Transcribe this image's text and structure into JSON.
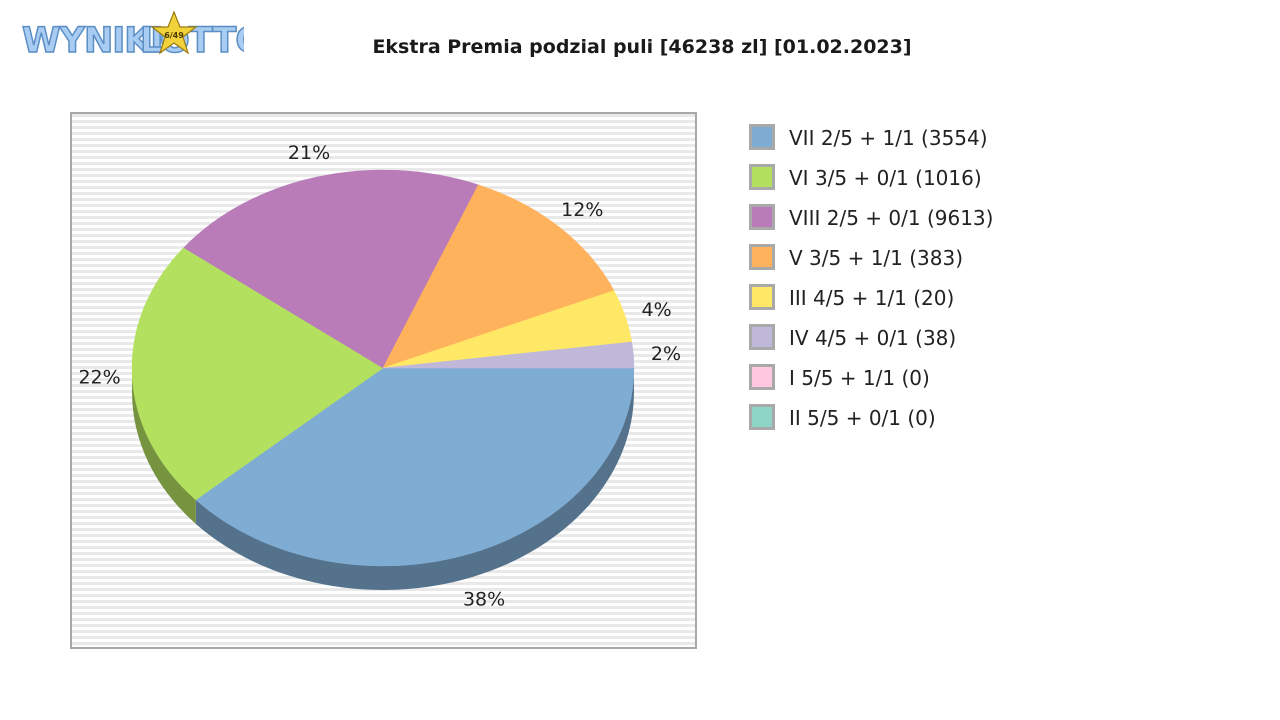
{
  "logo": {
    "text_part1": "WYNIKI",
    "text_part2": "LOTTO",
    "badge_text": "6/49"
  },
  "chart_data": {
    "type": "pie",
    "title": "Ekstra Premia podzial puli [46238 zl] [01.02.2023]",
    "legend_position": "right",
    "grid": true,
    "slices": [
      {
        "label": "VII 2/5 + 1/1 (3554)",
        "value": 38.4,
        "percent_label": "38%",
        "color": "#7facd3"
      },
      {
        "label": "VI 3/5 + 0/1 (1016)",
        "value": 22.0,
        "percent_label": "22%",
        "color": "#b3e05f"
      },
      {
        "label": "VIII 2/5 + 0/1 (9613)",
        "value": 20.8,
        "percent_label": "21%",
        "color": "#b97cb9"
      },
      {
        "label": "V 3/5 + 1/1 (383)",
        "value": 12.4,
        "percent_label": "12%",
        "color": "#ffb25c"
      },
      {
        "label": "III 4/5 + 1/1 (20)",
        "value": 4.3,
        "percent_label": "4%",
        "color": "#ffe866"
      },
      {
        "label": "IV 4/5 + 0/1 (38)",
        "value": 2.1,
        "percent_label": "2%",
        "color": "#bfb8d9"
      },
      {
        "label": "I 5/5 + 1/1 (0)",
        "value": 0,
        "percent_label": "",
        "color": "#ffc8e0"
      },
      {
        "label": "II 5/5 + 0/1 (0)",
        "value": 0,
        "percent_label": "",
        "color": "#8ed5c8"
      }
    ]
  }
}
